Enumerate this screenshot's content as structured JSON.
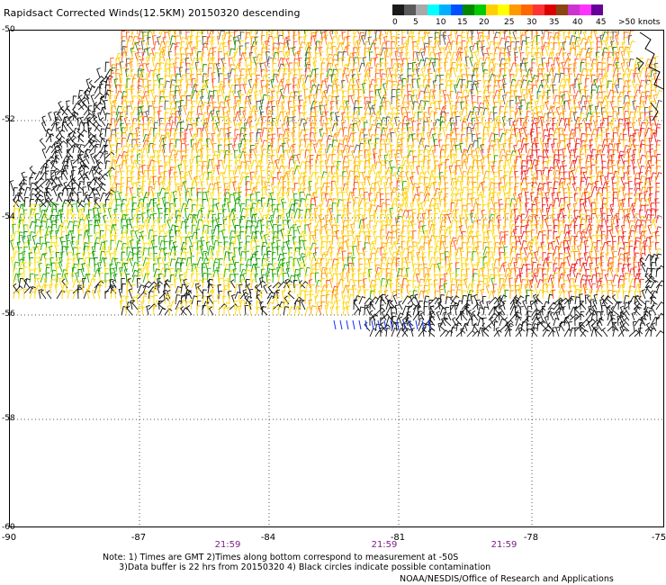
{
  "title": "Rapidsact Corrected Winds(12.5KM) 20150320 descending",
  "colorbar": {
    "colors": [
      "#1a1a1a",
      "#5a5a5a",
      "#a8a8a8",
      "#00ffff",
      "#00b0ff",
      "#0050ff",
      "#008800",
      "#00cc00",
      "#ffd000",
      "#ffff00",
      "#ff9900",
      "#ff6600",
      "#ff3333",
      "#dd0000",
      "#8b4513",
      "#cc33cc",
      "#ff33ff",
      "#660099"
    ],
    "labels": [
      "0",
      "5",
      "10",
      "15",
      "20",
      "25",
      "30",
      "35",
      "40",
      "45",
      ">50 knots"
    ]
  },
  "map": {
    "lat_ticks": [
      "-50",
      "-52",
      "-54",
      "-56",
      "-58",
      "-60"
    ],
    "lon_ticks": [
      "-90",
      "-87",
      "-84",
      "-81",
      "-78",
      "-75"
    ],
    "times": [
      "21:59",
      "21:59",
      "21:59"
    ]
  },
  "note": {
    "line1": "Note: 1) Times are GMT 2)Times along bottom correspond to measurement at -50S",
    "line2": "      3)Data buffer is 22 hrs from 20150320 4) Black circles indicate possible contamination"
  },
  "credit": "NOAA/NESDIS/Office of Research and Applications"
}
